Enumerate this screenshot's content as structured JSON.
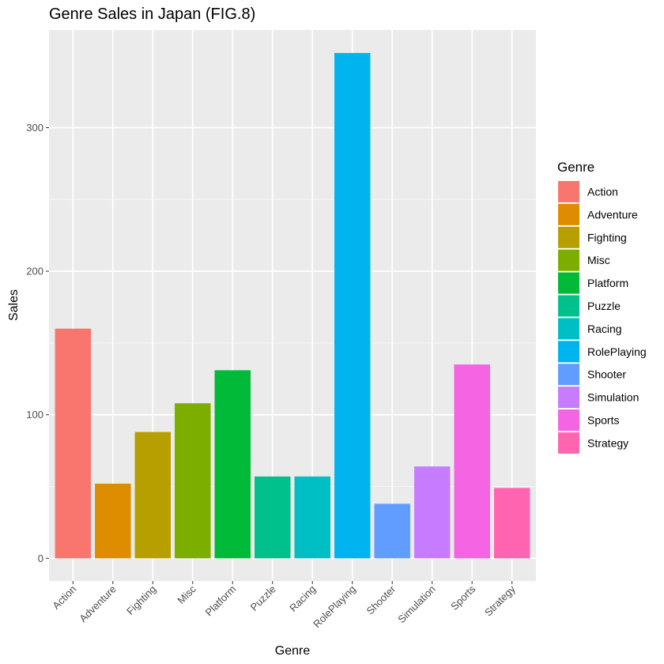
{
  "chart_data": {
    "type": "bar",
    "title": "Genre Sales in Japan (FIG.8)",
    "xlabel": "Genre",
    "ylabel": "Sales",
    "ylim": [
      -15.8,
      368
    ],
    "yticks": [
      0,
      100,
      200,
      300
    ],
    "grid": true,
    "legend_position": "right",
    "legend_title": "Genre",
    "categories": [
      "Action",
      "Adventure",
      "Fighting",
      "Misc",
      "Platform",
      "Puzzle",
      "Racing",
      "RolePlaying",
      "Shooter",
      "Simulation",
      "Sports",
      "Strategy"
    ],
    "values": [
      160,
      52,
      88,
      108,
      131,
      57,
      57,
      352,
      38,
      64,
      135,
      49
    ],
    "colors": [
      "#F8766D",
      "#DE8C00",
      "#B79F00",
      "#7CAE00",
      "#00BA38",
      "#00C08B",
      "#00BFC4",
      "#00B4F0",
      "#619CFF",
      "#C77CFF",
      "#F564E3",
      "#FF64B0"
    ]
  }
}
